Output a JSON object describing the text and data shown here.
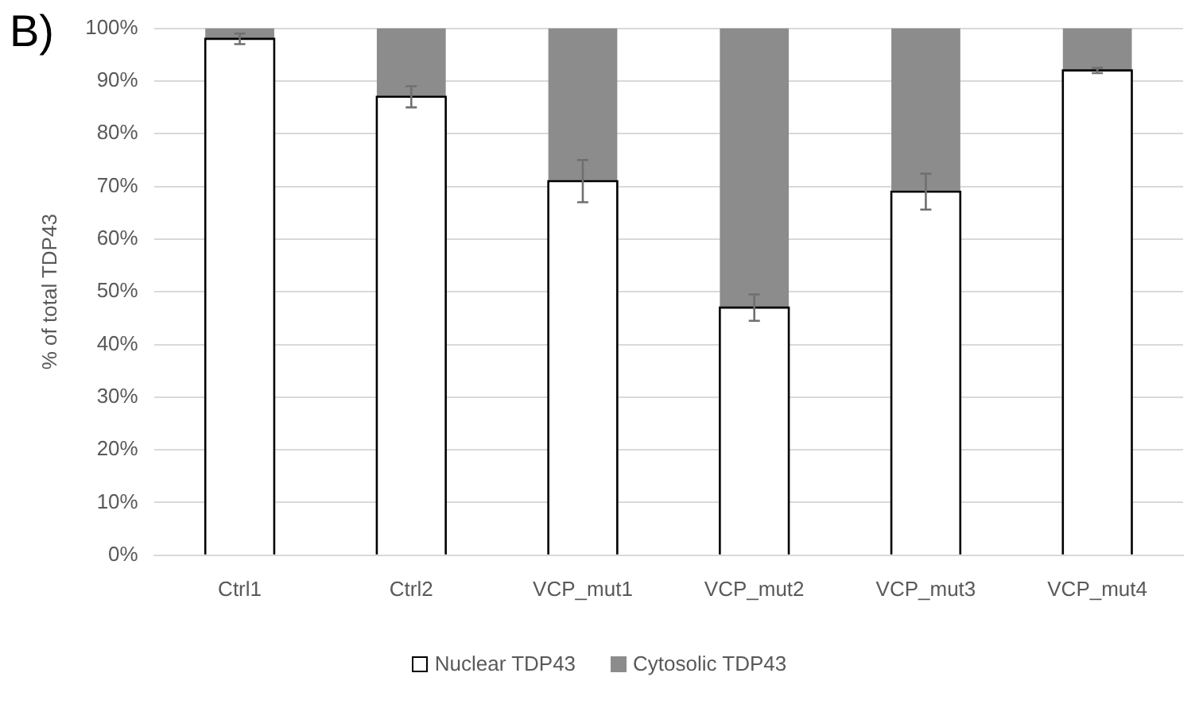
{
  "chart_data": {
    "type": "bar",
    "title": "B)",
    "ylabel": "% of total TDP43",
    "categories": [
      "Ctrl1",
      "Ctrl2",
      "VCP_mut1",
      "VCP_mut2",
      "VCP_mut3",
      "VCP_mut4"
    ],
    "stacked": true,
    "series": [
      {
        "name": "Nuclear TDP43",
        "color": "#ffffff",
        "values": [
          98,
          87,
          71,
          47,
          69,
          92
        ],
        "errors": [
          1,
          2,
          4,
          2.5,
          3.4,
          0.5
        ]
      },
      {
        "name": "Cytosolic TDP43",
        "color": "#8c8c8c",
        "values": [
          2,
          13,
          29,
          53,
          31,
          8
        ]
      }
    ],
    "ylim": [
      0,
      100
    ],
    "yticks": [
      {
        "value": 0,
        "label": "0%"
      },
      {
        "value": 10,
        "label": "10%"
      },
      {
        "value": 20,
        "label": "20%"
      },
      {
        "value": 30,
        "label": "30%"
      },
      {
        "value": 40,
        "label": "40%"
      },
      {
        "value": 50,
        "label": "50%"
      },
      {
        "value": 60,
        "label": "60%"
      },
      {
        "value": 70,
        "label": "70%"
      },
      {
        "value": 80,
        "label": "80%"
      },
      {
        "value": 90,
        "label": "90%"
      },
      {
        "value": 100,
        "label": "100%"
      }
    ],
    "grid": "y",
    "legend": "bottom"
  }
}
